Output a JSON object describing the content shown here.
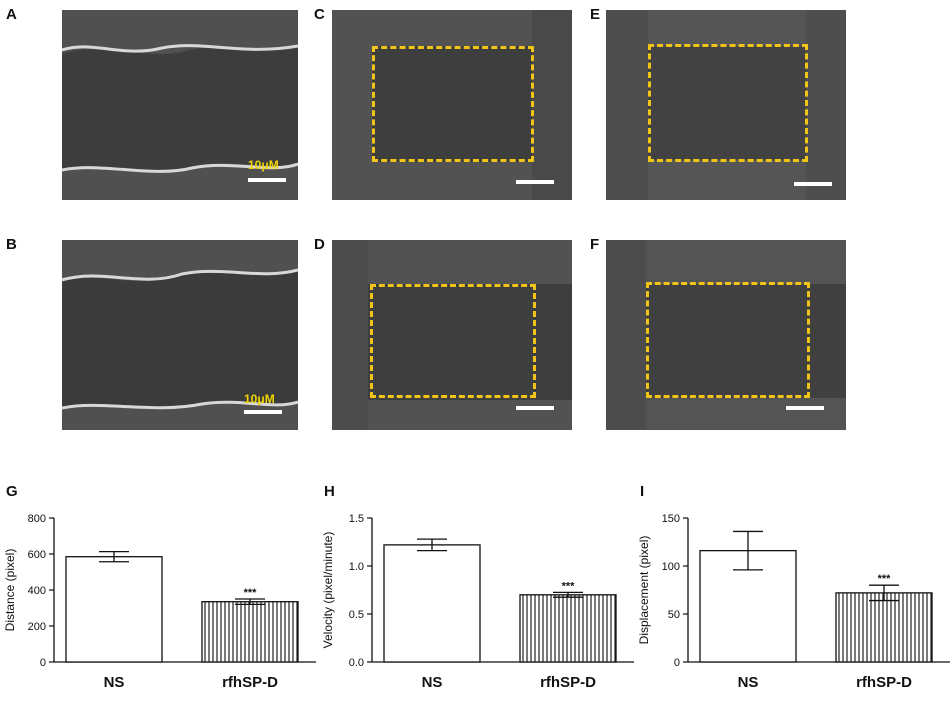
{
  "panels": {
    "A": {
      "letter": "A",
      "scale_label": "10μM"
    },
    "B": {
      "letter": "B",
      "scale_label": "10μM"
    },
    "C": {
      "letter": "C"
    },
    "D": {
      "letter": "D"
    },
    "E": {
      "letter": "E"
    },
    "F": {
      "letter": "F"
    }
  },
  "colors": {
    "box": "#f2c318",
    "scale_text": "#f2d500",
    "bar_stroke": "#111111"
  },
  "chart_data": [
    {
      "letter": "G",
      "type": "bar",
      "categories": [
        "NS",
        "rfhSP-D"
      ],
      "values": [
        585,
        335
      ],
      "errors": [
        28,
        15
      ],
      "significance": [
        "",
        "***"
      ],
      "ylabel": "Distance (pixel)",
      "ylim": [
        0,
        800
      ],
      "yticks": [
        0,
        200,
        400,
        600,
        800
      ],
      "ytick_labels": [
        "0",
        "200",
        "400",
        "600",
        "800"
      ],
      "bar_fills": [
        "open",
        "striped"
      ]
    },
    {
      "letter": "H",
      "type": "bar",
      "categories": [
        "NS",
        "rfhSP-D"
      ],
      "values": [
        1.22,
        0.7
      ],
      "errors": [
        0.06,
        0.025
      ],
      "significance": [
        "",
        "***"
      ],
      "ylabel": "Velocity (pixel/minute)",
      "ylim": [
        0,
        1.5
      ],
      "yticks": [
        0,
        0.5,
        1.0,
        1.5
      ],
      "ytick_labels": [
        "0.0",
        "0.5",
        "1.0",
        "1.5"
      ],
      "bar_fills": [
        "open",
        "striped"
      ]
    },
    {
      "letter": "I",
      "type": "bar",
      "categories": [
        "NS",
        "rfhSP-D"
      ],
      "values": [
        116,
        72
      ],
      "errors": [
        20,
        8
      ],
      "significance": [
        "",
        "***"
      ],
      "ylabel": "Displacement (pixel)",
      "ylim": [
        0,
        150
      ],
      "yticks": [
        0,
        50,
        100,
        150
      ],
      "ytick_labels": [
        "0",
        "50",
        "100",
        "150"
      ],
      "bar_fills": [
        "open",
        "striped"
      ]
    }
  ]
}
